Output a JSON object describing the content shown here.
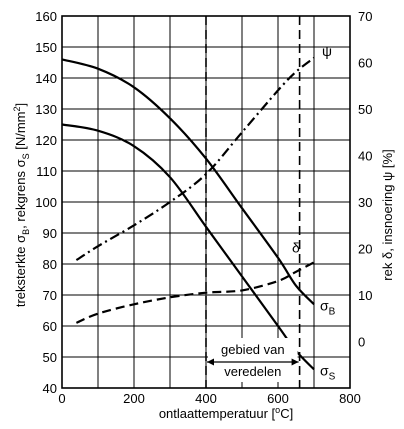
{
  "chart_data": {
    "type": "line",
    "title": "",
    "xlabel_parts": [
      "ontlaattemperatuur [",
      "o",
      "C]"
    ],
    "ylabel_left_parts": [
      "treksterkte σ",
      "B",
      ", rekgrens σ",
      "S",
      " [N/mm",
      "2",
      "]"
    ],
    "ylabel_right": "rek δ, insnoering ψ [%]",
    "xlim": [
      0,
      800
    ],
    "ylim_left": [
      40,
      160
    ],
    "ylim_right": [
      -10,
      70
    ],
    "x_ticks": [
      0,
      200,
      400,
      600,
      800
    ],
    "y_ticks_left": [
      40,
      50,
      60,
      70,
      80,
      90,
      100,
      110,
      120,
      130,
      140,
      150,
      160
    ],
    "y_ticks_right": [
      0,
      10,
      20,
      30,
      40,
      50,
      60,
      70
    ],
    "grid": true,
    "series": [
      {
        "name": "ψ",
        "axis": "right",
        "style": "dash-dot",
        "points": [
          [
            40,
            17.5
          ],
          [
            100,
            20.5
          ],
          [
            200,
            25
          ],
          [
            300,
            30
          ],
          [
            400,
            36
          ],
          [
            500,
            45
          ],
          [
            600,
            54
          ],
          [
            650,
            58
          ],
          [
            700,
            61
          ]
        ]
      },
      {
        "name": "δ",
        "axis": "right",
        "style": "dashed",
        "points": [
          [
            40,
            4
          ],
          [
            100,
            6
          ],
          [
            200,
            8
          ],
          [
            300,
            9.5
          ],
          [
            400,
            10.5
          ],
          [
            500,
            11
          ],
          [
            600,
            13
          ],
          [
            650,
            15
          ],
          [
            700,
            17
          ]
        ]
      },
      {
        "name": "σB",
        "label_main": "σ",
        "label_sub": "B",
        "axis": "left",
        "style": "solid",
        "points": [
          [
            0,
            146
          ],
          [
            100,
            143
          ],
          [
            200,
            137
          ],
          [
            300,
            127
          ],
          [
            400,
            114
          ],
          [
            500,
            98
          ],
          [
            600,
            82
          ],
          [
            650,
            73
          ],
          [
            700,
            67
          ]
        ]
      },
      {
        "name": "σS",
        "label_main": "σ",
        "label_sub": "S",
        "axis": "left",
        "style": "solid",
        "points": [
          [
            0,
            125
          ],
          [
            100,
            123
          ],
          [
            200,
            118
          ],
          [
            300,
            108
          ],
          [
            400,
            92
          ],
          [
            500,
            76
          ],
          [
            600,
            60
          ],
          [
            650,
            52
          ],
          [
            700,
            46
          ]
        ]
      }
    ],
    "vlines": [
      400,
      660
    ],
    "annotation": {
      "line1": "gebied van",
      "line2": "veredelen",
      "x_range": [
        400,
        660
      ]
    }
  }
}
